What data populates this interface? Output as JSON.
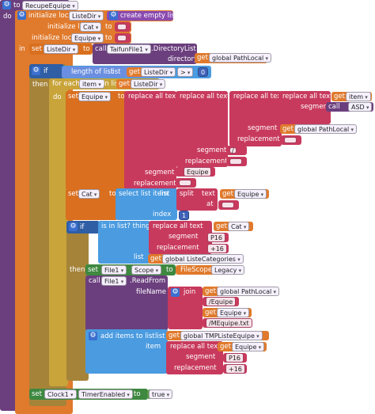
{
  "proc": {
    "to": "to",
    "name": "RecupeEquipe",
    "do": "do"
  },
  "init": [
    {
      "label": "initialize local",
      "var": "ListeDir",
      "to": "to",
      "value": "create empty list"
    },
    {
      "label": "initialize local",
      "var": "Cat",
      "to": "to",
      "value": "\" \""
    },
    {
      "label": "initialize local",
      "var": "Equipe",
      "to": "to",
      "value": "\" \""
    }
  ],
  "in_label": "in",
  "set_listedir": {
    "set": "set",
    "var": "ListeDir",
    "to": "to",
    "call": "call",
    "component": "TaifunFile1",
    "method": ".DirectoryList",
    "param": "directoryName",
    "get": "get",
    "get_var": "global PathLocal"
  },
  "if1": {
    "if": "if",
    "then": "then",
    "length": "length of list",
    "list": "list",
    "get": "get",
    "get_var": "ListeDir",
    "op": ">",
    "num": "0"
  },
  "foreach": {
    "label": "for each",
    "item": "item",
    "in_list": "in list",
    "get": "get",
    "get_var": "ListeDir",
    "do": "do"
  },
  "set_equipe": {
    "set": "set",
    "var": "Equipe",
    "to": "to",
    "replace_all": "replace all text",
    "get": "get",
    "item": "item",
    "segment": "segment",
    "replacement": "replacement",
    "call": "call",
    "asd": "ASD",
    "pathlocal": "global PathLocal",
    "slash": "/",
    "empty": " ",
    "equipe": "Equipe"
  },
  "set_cat": {
    "set": "set",
    "var": "Cat",
    "to": "to",
    "select": "select list item",
    "list": "list",
    "split": "split",
    "text": "text",
    "get": "get",
    "get_var": "Equipe",
    "at": "at",
    "at_val": " ",
    "index": "index",
    "index_val": "1"
  },
  "if2": {
    "if": "if",
    "then": "then",
    "isinlist": "is in list? thing",
    "replace_all": "replace all text",
    "get": "get",
    "get_var": "Cat",
    "segment": "segment",
    "seg_val": "P16",
    "replacement": "replacement",
    "rep_val": "+16",
    "list": "list",
    "list_var": "global ListeCategories"
  },
  "set_file": {
    "set": "set",
    "component": "File1",
    "prop": "Scope",
    "to": "to",
    "scope_label": "FileScope",
    "scope_val": "Legacy"
  },
  "readfrom": {
    "call": "call",
    "component": "File1",
    "method": ".ReadFrom",
    "param": "fileName",
    "join": "join",
    "get": "get",
    "pathlocal": "global PathLocal",
    "p1": "/Equipe",
    "equipe": "Equipe",
    "p2": "/MEquipe.txt"
  },
  "additems": {
    "label": "add items to list",
    "list": "list",
    "get": "get",
    "list_var": "global TMPListeEquipe",
    "item": "item",
    "replace_all": "replace all text",
    "equipe": "Equipe",
    "segment": "segment",
    "seg_val": "P16",
    "replacement": "replacement",
    "rep_val": "+16"
  },
  "set_clock": {
    "set": "set",
    "component": "Clock1",
    "prop": "TimerEnabled",
    "to": "to",
    "val": "true"
  }
}
